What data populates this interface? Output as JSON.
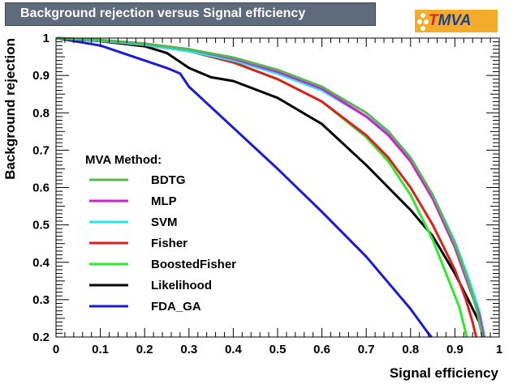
{
  "title": "Background rejection versus Signal efficiency",
  "logo": {
    "prefix": "T",
    "suffix": "MVA"
  },
  "chart_data": {
    "type": "line",
    "title": "Background rejection versus Signal efficiency",
    "xlabel": "Signal efficiency",
    "ylabel": "Background rejection",
    "xlim": [
      0,
      1
    ],
    "ylim": [
      0.2,
      1
    ],
    "xticks": [
      "0",
      "0.1",
      "0.2",
      "0.3",
      "0.4",
      "0.5",
      "0.6",
      "0.7",
      "0.8",
      "0.9",
      "1"
    ],
    "yticks": [
      "0.2",
      "0.3",
      "0.4",
      "0.5",
      "0.6",
      "0.7",
      "0.8",
      "0.9",
      "1"
    ],
    "legend_title": "MVA Method:",
    "legend_position": "left",
    "series": [
      {
        "name": "BDTG",
        "color": "#55b855",
        "points": [
          [
            0,
            1
          ],
          [
            0.1,
            0.995
          ],
          [
            0.2,
            0.985
          ],
          [
            0.3,
            0.97
          ],
          [
            0.4,
            0.948
          ],
          [
            0.5,
            0.915
          ],
          [
            0.6,
            0.87
          ],
          [
            0.7,
            0.8
          ],
          [
            0.75,
            0.75
          ],
          [
            0.8,
            0.68
          ],
          [
            0.85,
            0.58
          ],
          [
            0.9,
            0.45
          ],
          [
            0.93,
            0.35
          ],
          [
            0.95,
            0.27
          ],
          [
            0.962,
            0.2
          ]
        ]
      },
      {
        "name": "MLP",
        "color": "#d21ed2",
        "points": [
          [
            0,
            1
          ],
          [
            0.1,
            0.995
          ],
          [
            0.2,
            0.985
          ],
          [
            0.3,
            0.97
          ],
          [
            0.4,
            0.945
          ],
          [
            0.5,
            0.91
          ],
          [
            0.6,
            0.865
          ],
          [
            0.7,
            0.79
          ],
          [
            0.75,
            0.74
          ],
          [
            0.8,
            0.67
          ],
          [
            0.85,
            0.57
          ],
          [
            0.9,
            0.44
          ],
          [
            0.93,
            0.34
          ],
          [
            0.955,
            0.26
          ],
          [
            0.965,
            0.2
          ]
        ]
      },
      {
        "name": "SVM",
        "color": "#22e6ee",
        "points": [
          [
            0,
            1
          ],
          [
            0.1,
            0.993
          ],
          [
            0.2,
            0.982
          ],
          [
            0.3,
            0.965
          ],
          [
            0.4,
            0.94
          ],
          [
            0.5,
            0.905
          ],
          [
            0.6,
            0.86
          ],
          [
            0.7,
            0.79
          ],
          [
            0.75,
            0.745
          ],
          [
            0.8,
            0.675
          ],
          [
            0.85,
            0.58
          ],
          [
            0.9,
            0.455
          ],
          [
            0.93,
            0.36
          ],
          [
            0.955,
            0.27
          ],
          [
            0.967,
            0.2
          ]
        ]
      },
      {
        "name": "Fisher",
        "color": "#dd1f1f",
        "points": [
          [
            0,
            1
          ],
          [
            0.1,
            0.993
          ],
          [
            0.2,
            0.982
          ],
          [
            0.3,
            0.965
          ],
          [
            0.4,
            0.935
          ],
          [
            0.5,
            0.89
          ],
          [
            0.6,
            0.83
          ],
          [
            0.7,
            0.74
          ],
          [
            0.75,
            0.68
          ],
          [
            0.8,
            0.6
          ],
          [
            0.85,
            0.5
          ],
          [
            0.9,
            0.38
          ],
          [
            0.925,
            0.3
          ],
          [
            0.94,
            0.24
          ],
          [
            0.948,
            0.2
          ]
        ]
      },
      {
        "name": "BoostedFisher",
        "color": "#2ee82e",
        "points": [
          [
            0,
            1
          ],
          [
            0.1,
            0.993
          ],
          [
            0.2,
            0.982
          ],
          [
            0.3,
            0.965
          ],
          [
            0.4,
            0.935
          ],
          [
            0.5,
            0.89
          ],
          [
            0.6,
            0.83
          ],
          [
            0.7,
            0.735
          ],
          [
            0.75,
            0.67
          ],
          [
            0.8,
            0.58
          ],
          [
            0.85,
            0.46
          ],
          [
            0.88,
            0.37
          ],
          [
            0.91,
            0.28
          ],
          [
            0.927,
            0.2
          ]
        ]
      },
      {
        "name": "Likelihood",
        "color": "#000000",
        "points": [
          [
            0,
            1
          ],
          [
            0.1,
            0.992
          ],
          [
            0.2,
            0.978
          ],
          [
            0.25,
            0.96
          ],
          [
            0.3,
            0.92
          ],
          [
            0.35,
            0.895
          ],
          [
            0.4,
            0.885
          ],
          [
            0.5,
            0.84
          ],
          [
            0.6,
            0.77
          ],
          [
            0.7,
            0.66
          ],
          [
            0.75,
            0.6
          ],
          [
            0.8,
            0.54
          ],
          [
            0.85,
            0.47
          ],
          [
            0.9,
            0.37
          ],
          [
            0.93,
            0.3
          ],
          [
            0.955,
            0.24
          ],
          [
            0.963,
            0.2
          ]
        ]
      },
      {
        "name": "FDA_GA",
        "color": "#1a1ad8",
        "points": [
          [
            0,
            1
          ],
          [
            0.1,
            0.98
          ],
          [
            0.15,
            0.96
          ],
          [
            0.2,
            0.94
          ],
          [
            0.25,
            0.92
          ],
          [
            0.28,
            0.905
          ],
          [
            0.3,
            0.87
          ],
          [
            0.4,
            0.76
          ],
          [
            0.5,
            0.65
          ],
          [
            0.6,
            0.535
          ],
          [
            0.7,
            0.415
          ],
          [
            0.8,
            0.275
          ],
          [
            0.84,
            0.21
          ],
          [
            0.847,
            0.2
          ]
        ]
      }
    ]
  }
}
